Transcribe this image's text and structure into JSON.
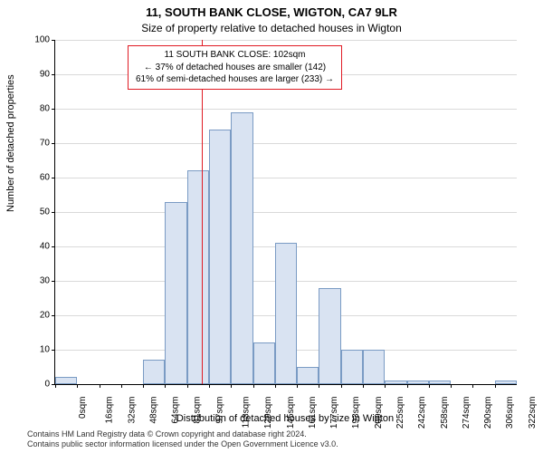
{
  "titles": {
    "main": "11, SOUTH BANK CLOSE, WIGTON, CA7 9LR",
    "sub": "Size of property relative to detached houses in Wigton"
  },
  "axes": {
    "xlabel": "Distribution of detached houses by size in Wigton",
    "ylabel": "Number of detached properties",
    "ylim": [
      0,
      100
    ],
    "ytick_step": 10,
    "xlabels": [
      "0sqm",
      "16sqm",
      "32sqm",
      "48sqm",
      "64sqm",
      "81sqm",
      "97sqm",
      "113sqm",
      "129sqm",
      "145sqm",
      "161sqm",
      "177sqm",
      "193sqm",
      "209sqm",
      "225sqm",
      "242sqm",
      "258sqm",
      "274sqm",
      "290sqm",
      "306sqm",
      "322sqm"
    ]
  },
  "chart": {
    "type": "histogram",
    "values": [
      2,
      0,
      0,
      0,
      7,
      53,
      62,
      74,
      79,
      12,
      41,
      5,
      28,
      10,
      10,
      1,
      1,
      1,
      0,
      0,
      1
    ],
    "bar_fill": "#d9e3f2",
    "bar_border": "#7a9bc4",
    "grid_color": "#d9d9d9",
    "background_color": "#ffffff",
    "ref_value_sqm": 102,
    "x_min_sqm": 0,
    "x_max_sqm": 322,
    "ref_line_color": "#e01b24"
  },
  "infobox": {
    "line1": "11 SOUTH BANK CLOSE: 102sqm",
    "line2": "← 37% of detached houses are smaller (142)",
    "line3": "61% of semi-detached houses are larger (233) →",
    "border_color": "#e01b24"
  },
  "footnote": {
    "line1": "Contains HM Land Registry data © Crown copyright and database right 2024.",
    "line2": "Contains public sector information licensed under the Open Government Licence v3.0."
  },
  "style": {
    "title_fontsize": 13,
    "sub_fontsize": 12,
    "axis_label_fontsize": 11,
    "tick_fontsize": 10,
    "infobox_fontsize": 10,
    "footnote_fontsize": 9,
    "font_family": "Arial"
  }
}
